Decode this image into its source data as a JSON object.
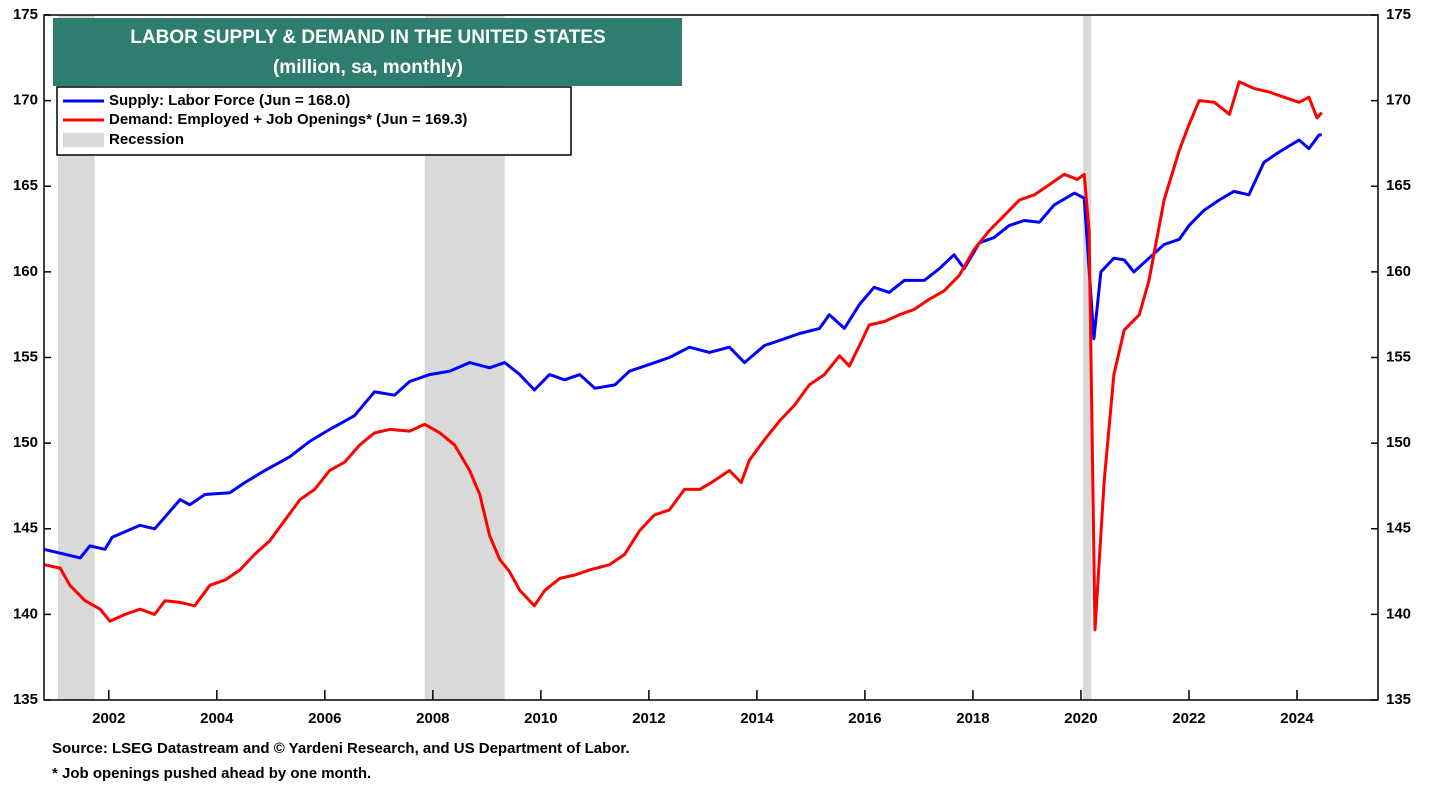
{
  "chart_data": {
    "type": "line",
    "title": "LABOR SUPPLY & DEMAND IN THE UNITED STATES",
    "subtitle": "(million, sa, monthly)",
    "source": "Source: LSEG Datastream and © Yardeni Research, and US Department of Labor.",
    "note": "* Job openings pushed ahead by one month.",
    "xlim": [
      2000.8,
      2025.5
    ],
    "xticks": [
      2002,
      2004,
      2006,
      2008,
      2010,
      2012,
      2014,
      2016,
      2018,
      2020,
      2022,
      2024
    ],
    "ylim": [
      135,
      175
    ],
    "yticks": [
      135,
      140,
      145,
      150,
      155,
      160,
      165,
      170,
      175
    ],
    "legend": "upper left",
    "recession_label": "Recession",
    "recession_color": "#d9d9d9",
    "recessions": [
      [
        2001.06,
        2001.74
      ],
      [
        2007.85,
        2009.33
      ],
      [
        2020.04,
        2020.19
      ]
    ],
    "series": [
      {
        "name": "Supply: Labor Force (Jun = 168.0)",
        "color": "#0000ff",
        "x": [
          2000.8,
          2001.47,
          2001.65,
          2001.93,
          2002.06,
          2002.58,
          2002.85,
          2003.32,
          2003.5,
          2003.78,
          2004.24,
          2004.52,
          2004.89,
          2005.35,
          2005.72,
          2006.09,
          2006.55,
          2006.92,
          2007.29,
          2007.57,
          2007.94,
          2008.31,
          2008.68,
          2009.05,
          2009.33,
          2009.61,
          2009.88,
          2010.16,
          2010.44,
          2010.72,
          2011.0,
          2011.37,
          2011.64,
          2012.01,
          2012.38,
          2012.75,
          2013.12,
          2013.49,
          2013.77,
          2014.14,
          2014.42,
          2014.79,
          2015.16,
          2015.34,
          2015.62,
          2015.9,
          2016.17,
          2016.45,
          2016.73,
          2017.1,
          2017.38,
          2017.65,
          2017.84,
          2018.12,
          2018.39,
          2018.67,
          2018.95,
          2019.23,
          2019.5,
          2019.88,
          2020.06,
          2020.24,
          2020.37,
          2020.61,
          2020.8,
          2020.98,
          2021.26,
          2021.54,
          2021.82,
          2022.0,
          2022.28,
          2022.56,
          2022.83,
          2023.11,
          2023.39,
          2023.67,
          2024.04,
          2024.22,
          2024.41,
          2024.46
        ],
        "values": [
          143.8,
          143.3,
          144.0,
          143.8,
          144.5,
          145.2,
          145.0,
          146.7,
          146.4,
          147.0,
          147.1,
          147.7,
          148.4,
          149.2,
          150.1,
          150.8,
          151.6,
          153.0,
          152.8,
          153.6,
          154.0,
          154.2,
          154.7,
          154.4,
          154.7,
          154.0,
          153.1,
          154.0,
          153.7,
          154.0,
          153.2,
          153.4,
          154.2,
          154.6,
          155.0,
          155.6,
          155.3,
          155.6,
          154.7,
          155.7,
          156.0,
          156.4,
          156.7,
          157.5,
          156.7,
          158.1,
          159.1,
          158.8,
          159.5,
          159.5,
          160.2,
          161.0,
          160.2,
          161.7,
          162.0,
          162.7,
          163.0,
          162.9,
          163.9,
          164.6,
          164.3,
          156.1,
          160.0,
          160.8,
          160.7,
          160.0,
          160.8,
          161.6,
          161.9,
          162.7,
          163.6,
          164.2,
          164.7,
          164.5,
          166.4,
          167.0,
          167.7,
          167.2,
          168.0,
          168.0
        ]
      },
      {
        "name": "Demand: Employed + Job Openings* (Jun = 169.3)",
        "color": "#ff0000",
        "x": [
          2000.8,
          2001.1,
          2001.28,
          2001.56,
          2001.84,
          2002.02,
          2002.3,
          2002.58,
          2002.85,
          2003.04,
          2003.32,
          2003.59,
          2003.87,
          2004.15,
          2004.43,
          2004.7,
          2004.98,
          2005.26,
          2005.54,
          2005.81,
          2006.09,
          2006.37,
          2006.65,
          2006.92,
          2007.2,
          2007.57,
          2007.85,
          2008.13,
          2008.4,
          2008.68,
          2008.87,
          2009.05,
          2009.24,
          2009.42,
          2009.61,
          2009.88,
          2010.07,
          2010.35,
          2010.63,
          2010.9,
          2011.27,
          2011.55,
          2011.83,
          2012.1,
          2012.38,
          2012.66,
          2012.94,
          2013.21,
          2013.49,
          2013.71,
          2013.86,
          2014.14,
          2014.42,
          2014.69,
          2014.97,
          2015.25,
          2015.53,
          2015.71,
          2015.9,
          2016.08,
          2016.36,
          2016.64,
          2016.91,
          2017.19,
          2017.47,
          2017.75,
          2018.02,
          2018.3,
          2018.58,
          2018.86,
          2019.14,
          2019.42,
          2019.69,
          2019.93,
          2020.06,
          2020.15,
          2020.26,
          2020.43,
          2020.61,
          2020.8,
          2021.08,
          2021.26,
          2021.54,
          2021.82,
          2022.0,
          2022.19,
          2022.47,
          2022.75,
          2022.93,
          2023.21,
          2023.49,
          2023.76,
          2024.04,
          2024.22,
          2024.37,
          2024.46
        ],
        "values": [
          142.9,
          142.7,
          141.7,
          140.8,
          140.3,
          139.6,
          140.0,
          140.3,
          140.0,
          140.8,
          140.7,
          140.5,
          141.7,
          142.0,
          142.6,
          143.5,
          144.3,
          145.5,
          146.7,
          147.3,
          148.4,
          148.9,
          149.9,
          150.6,
          150.8,
          150.7,
          151.1,
          150.6,
          149.9,
          148.4,
          147.0,
          144.6,
          143.2,
          142.5,
          141.4,
          140.5,
          141.4,
          142.1,
          142.3,
          142.6,
          142.9,
          143.5,
          144.9,
          145.8,
          146.1,
          147.3,
          147.3,
          147.8,
          148.4,
          147.7,
          149.0,
          150.2,
          151.3,
          152.2,
          153.4,
          154.0,
          155.1,
          154.5,
          155.7,
          156.9,
          157.1,
          157.5,
          157.8,
          158.4,
          158.9,
          159.8,
          161.3,
          162.4,
          163.3,
          164.2,
          164.5,
          165.1,
          165.7,
          165.4,
          165.7,
          162.4,
          139.1,
          147.8,
          154.0,
          156.6,
          157.5,
          159.5,
          164.2,
          167.1,
          168.6,
          170.0,
          169.9,
          169.2,
          171.1,
          170.7,
          170.5,
          170.2,
          169.9,
          170.2,
          169.0,
          169.3
        ]
      }
    ]
  }
}
